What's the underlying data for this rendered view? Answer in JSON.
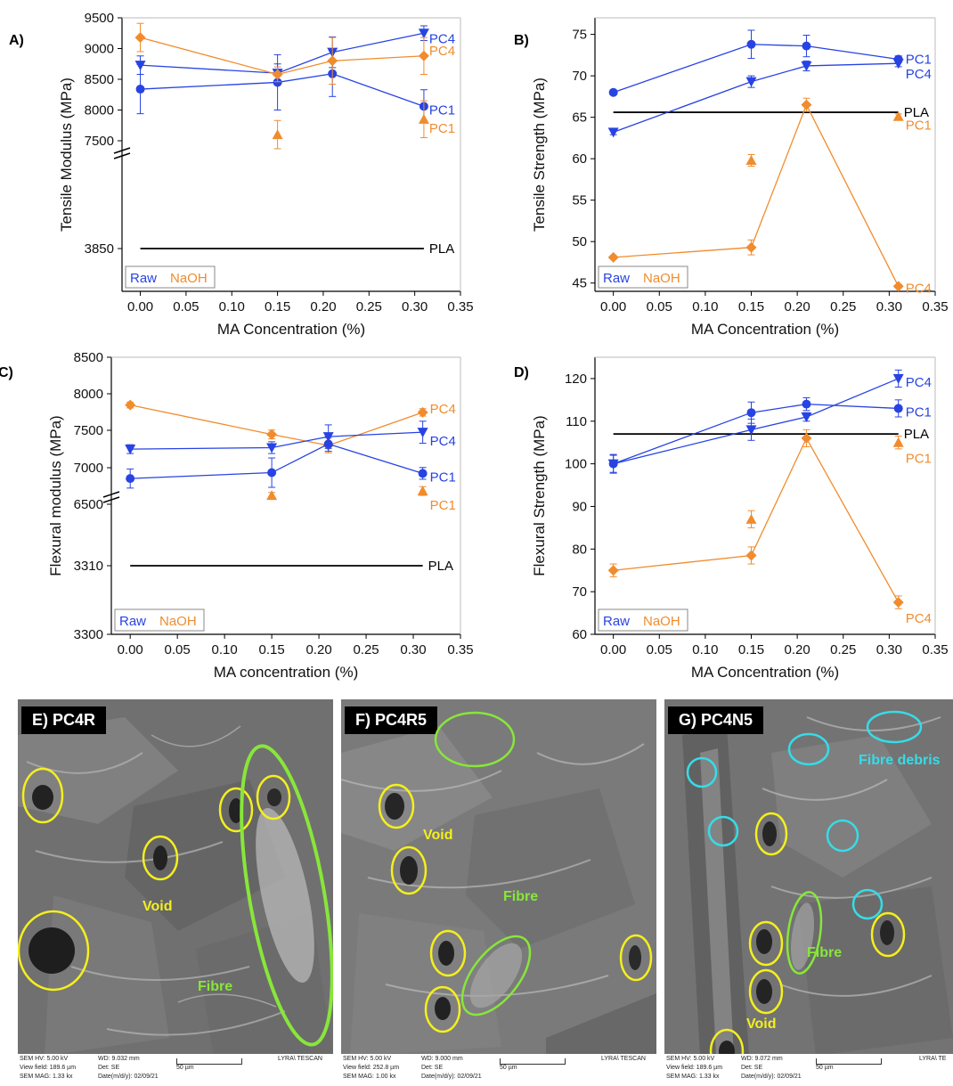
{
  "colors": {
    "raw": "#2743e3",
    "naoh": "#f08c2e",
    "pla": "#000000",
    "void": "#f4ef1e",
    "fibre": "#88e63a",
    "debris": "#35dce8"
  },
  "legend": {
    "raw": "Raw",
    "naoh": "NaOH"
  },
  "chart_data": [
    {
      "panel": "A)",
      "type": "line",
      "xlabel": "MA Concentration (%)",
      "ylabel": "Tensile Modulus (MPa)",
      "xlim": [
        -0.02,
        0.35
      ],
      "xticks": [
        "0.00",
        "0.05",
        "0.10",
        "0.15",
        "0.20",
        "0.25",
        "0.30",
        "0.35"
      ],
      "yticks": [
        "9500",
        "9000",
        "8500",
        "8000",
        "7500",
        "3850"
      ],
      "y_axis_break": true,
      "reference": {
        "name": "PLA",
        "value": 3850
      },
      "series": [
        {
          "name": "PC4",
          "group": "raw",
          "marker": "tri-down",
          "x": [
            0,
            0.15,
            0.21,
            0.31
          ],
          "y": [
            8730,
            8600,
            8940,
            9250
          ],
          "err": [
            150,
            150,
            250,
            120
          ]
        },
        {
          "name": "PC1",
          "group": "raw",
          "marker": "circle",
          "x": [
            0,
            0.15,
            0.21,
            0.31
          ],
          "y": [
            8340,
            8450,
            8590,
            8060
          ],
          "err": [
            400,
            450,
            370,
            270
          ]
        },
        {
          "name": "PC4",
          "group": "naoh",
          "marker": "diamond",
          "x": [
            0,
            0.15,
            0.21,
            0.31
          ],
          "y": [
            9180,
            8580,
            8800,
            8880
          ],
          "err": [
            230,
            120,
            380,
            300
          ]
        },
        {
          "name": "PC1",
          "group": "naoh",
          "marker": "triangle",
          "x": [
            0.15,
            0.31
          ],
          "y": [
            7600,
            7850
          ],
          "err": [
            230,
            300
          ]
        }
      ]
    },
    {
      "panel": "B)",
      "type": "line",
      "xlabel": "MA Concentration (%)",
      "ylabel": "Tensile Strength (MPa)",
      "xlim": [
        -0.02,
        0.35
      ],
      "ylim": [
        44,
        77
      ],
      "xticks": [
        "0.00",
        "0.05",
        "0.10",
        "0.15",
        "0.20",
        "0.25",
        "0.30",
        "0.35"
      ],
      "yticks": [
        "45",
        "50",
        "55",
        "60",
        "65",
        "70",
        "75"
      ],
      "reference": {
        "name": "PLA",
        "value": 65.6
      },
      "series": [
        {
          "name": "PC1",
          "group": "raw",
          "marker": "circle",
          "x": [
            0,
            0.15,
            0.21,
            0.31
          ],
          "y": [
            68.0,
            73.8,
            73.6,
            72.0
          ],
          "err": [
            0.3,
            1.7,
            1.3,
            0.4
          ]
        },
        {
          "name": "PC4",
          "group": "raw",
          "marker": "tri-down",
          "x": [
            0,
            0.15,
            0.21,
            0.31
          ],
          "y": [
            63.2,
            69.3,
            71.2,
            71.5
          ],
          "err": [
            0.3,
            0.7,
            0.6,
            0.4
          ]
        },
        {
          "name": "PC1",
          "group": "naoh",
          "marker": "triangle",
          "x": [
            0.15,
            0.31
          ],
          "y": [
            59.8,
            65.1
          ],
          "err": [
            0.7,
            0.3
          ]
        },
        {
          "name": "PC4",
          "group": "naoh",
          "marker": "diamond",
          "x": [
            0,
            0.15,
            0.21,
            0.31
          ],
          "y": [
            48.1,
            49.3,
            66.5,
            44.6
          ],
          "err": [
            0.2,
            0.9,
            0.8,
            0.2
          ]
        }
      ]
    },
    {
      "panel": "C)",
      "type": "line",
      "xlabel": "MA concentration (%)",
      "ylabel": "Flexural modulus (MPa)",
      "xlim": [
        -0.02,
        0.35
      ],
      "xticks": [
        "0.00",
        "0.05",
        "0.10",
        "0.15",
        "0.20",
        "0.25",
        "0.30",
        "0.35"
      ],
      "yticks": [
        "8500",
        "8000",
        "7500",
        "7000",
        "6500",
        "3310",
        "3300"
      ],
      "y_axis_break": true,
      "reference": {
        "name": "PLA",
        "value": 3310
      },
      "series": [
        {
          "name": "PC4",
          "group": "naoh",
          "marker": "diamond",
          "x": [
            0,
            0.15,
            0.21,
            0.31
          ],
          "y": [
            7850,
            7450,
            7300,
            7750
          ],
          "err": [
            40,
            60,
            100,
            50
          ]
        },
        {
          "name": "PC4",
          "group": "raw",
          "marker": "tri-down",
          "x": [
            0,
            0.15,
            0.21,
            0.31
          ],
          "y": [
            7250,
            7270,
            7420,
            7480
          ],
          "err": [
            60,
            80,
            160,
            150
          ]
        },
        {
          "name": "PC1",
          "group": "raw",
          "marker": "circle",
          "x": [
            0,
            0.15,
            0.21,
            0.31
          ],
          "y": [
            6850,
            6930,
            7320,
            6920
          ],
          "err": [
            130,
            200,
            100,
            80
          ]
        },
        {
          "name": "PC1",
          "group": "naoh",
          "marker": "triangle",
          "x": [
            0.15,
            0.31
          ],
          "y": [
            6620,
            6680
          ],
          "err": [
            40,
            60
          ]
        }
      ]
    },
    {
      "panel": "D)",
      "type": "line",
      "xlabel": "MA Concentration (%)",
      "ylabel": "Flexural Strength (MPa)",
      "xlim": [
        -0.02,
        0.35
      ],
      "ylim": [
        60,
        125
      ],
      "xticks": [
        "0.00",
        "0.05",
        "0.10",
        "0.15",
        "0.20",
        "0.25",
        "0.30",
        "0.35"
      ],
      "yticks": [
        "60",
        "70",
        "80",
        "90",
        "100",
        "110",
        "120"
      ],
      "reference": {
        "name": "PLA",
        "value": 107
      },
      "series": [
        {
          "name": "PC4",
          "group": "raw",
          "marker": "tri-down",
          "x": [
            0,
            0.15,
            0.21,
            0.31
          ],
          "y": [
            100,
            108,
            111,
            120
          ],
          "err": [
            2.2,
            2.5,
            1.0,
            2.0
          ]
        },
        {
          "name": "PC1",
          "group": "raw",
          "marker": "circle",
          "x": [
            0,
            0.15,
            0.21,
            0.31
          ],
          "y": [
            100,
            112,
            114,
            113
          ],
          "err": [
            2.0,
            2.5,
            1.5,
            2.0
          ]
        },
        {
          "name": "PC1",
          "group": "naoh",
          "marker": "triangle",
          "x": [
            0.15,
            0.31
          ],
          "y": [
            87,
            105
          ],
          "err": [
            2.0,
            1.5
          ]
        },
        {
          "name": "PC4",
          "group": "naoh",
          "marker": "diamond",
          "x": [
            0,
            0.15,
            0.21,
            0.31
          ],
          "y": [
            75,
            78.5,
            106,
            67.5
          ],
          "err": [
            1.5,
            2.0,
            2.0,
            1.5
          ]
        }
      ]
    }
  ],
  "sem_panels": [
    {
      "title": "E) PC4R",
      "labels": [
        "Void",
        "Fibre"
      ],
      "info": {
        "hv": "SEM HV: 5.00 kV",
        "wd": "WD: 9.032 mm",
        "field": "View field: 189.6 µm",
        "det": "Det: SE",
        "mag": "SEM MAG: 1.33 kx",
        "date": "Date(m/d/y): 02/09/21",
        "scale": "50 µm",
        "brand": "LYRA\\ TESCAN"
      }
    },
    {
      "title": "F) PC4R5",
      "labels": [
        "Void",
        "Fibre"
      ],
      "info": {
        "hv": "SEM HV: 5.00 kV",
        "wd": "WD: 9.000 mm",
        "field": "View field: 252.8 µm",
        "det": "Det: SE",
        "mag": "SEM MAG: 1.00 kx",
        "date": "Date(m/d/y): 02/09/21",
        "scale": "50 µm",
        "brand": "LYRA\\ TESCAN"
      }
    },
    {
      "title": "G) PC4N5",
      "labels": [
        "Void",
        "Fibre",
        "Fibre debris"
      ],
      "info": {
        "hv": "SEM HV: 5.00 kV",
        "wd": "WD: 9.072 mm",
        "field": "View field: 189.6 µm",
        "det": "Det: SE",
        "mag": "SEM MAG: 1.33 kx",
        "date": "Date(m/d/y): 02/09/21",
        "scale": "50 µm",
        "brand": "LYRA\\ TE"
      }
    }
  ]
}
